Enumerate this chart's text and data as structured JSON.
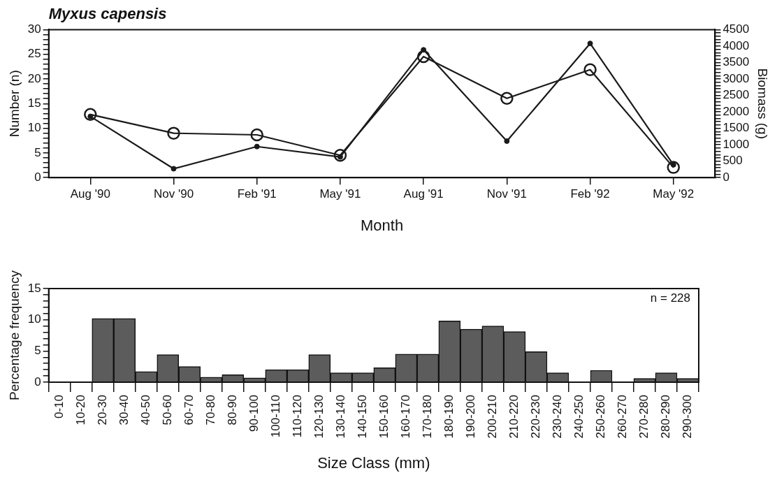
{
  "chart_data": [
    {
      "type": "line",
      "title": "Myxus capensis",
      "xlabel": "Month",
      "ylabel": "Number (n)",
      "y2label": "Biomass (g)",
      "categories": [
        "Aug '90",
        "Nov '90",
        "Feb '91",
        "May '91",
        "Aug '91",
        "Nov '91",
        "Feb '92",
        "May '92"
      ],
      "series": [
        {
          "color": "#1a1a1a",
          "values": [
            12.4,
            1.8,
            6.3,
            4.2,
            25.9,
            7.4,
            27.2,
            2.6
          ]
        },
        {
          "color": "#1a1a1a",
          "axis": "y2",
          "values": [
            1920,
            1350,
            1300,
            680,
            3680,
            2410,
            3280,
            310
          ]
        }
      ],
      "ylim": [
        0,
        30
      ],
      "yticks": [
        0,
        {
          "value": 1,
          "label": null
        },
        {
          "value": 2,
          "label": null
        },
        {
          "value": 3,
          "label": null
        },
        {
          "value": 4,
          "label": null
        },
        5,
        {
          "value": 6,
          "label": null
        },
        {
          "value": 7,
          "label": null
        },
        {
          "value": 8,
          "label": null
        },
        {
          "value": 9,
          "label": null
        },
        10,
        {
          "value": 11,
          "label": null
        },
        {
          "value": 12,
          "label": null
        },
        {
          "value": 13,
          "label": null
        },
        {
          "value": 14,
          "label": null
        },
        15,
        {
          "value": 16,
          "label": null
        },
        {
          "value": 17,
          "label": null
        },
        {
          "value": 18,
          "label": null
        },
        {
          "value": 19,
          "label": null
        },
        20,
        {
          "value": 21,
          "label": null
        },
        {
          "value": 22,
          "label": null
        },
        {
          "value": 23,
          "label": null
        },
        {
          "value": 24,
          "label": null
        },
        25,
        {
          "value": 26,
          "label": null
        },
        {
          "value": 27,
          "label": null
        },
        {
          "value": 28,
          "label": null
        },
        {
          "value": 29,
          "label": null
        },
        30
      ],
      "y2lim": [
        0,
        4500
      ],
      "y2ticks": [
        0,
        {
          "value": 100,
          "label": null
        },
        {
          "value": 200,
          "label": null
        },
        {
          "value": 300,
          "label": null
        },
        {
          "value": 400,
          "label": null
        },
        500,
        {
          "value": 600,
          "label": null
        },
        {
          "value": 700,
          "label": null
        },
        {
          "value": 800,
          "label": null
        },
        {
          "value": 900,
          "label": null
        },
        1000,
        {
          "value": 1100,
          "label": null
        },
        {
          "value": 1200,
          "label": null
        },
        {
          "value": 1300,
          "label": null
        },
        {
          "value": 1400,
          "label": null
        },
        1500,
        {
          "value": 1600,
          "label": null
        },
        {
          "value": 1700,
          "label": null
        },
        {
          "value": 1800,
          "label": null
        },
        {
          "value": 1900,
          "label": null
        },
        2000,
        {
          "value": 2100,
          "label": null
        },
        {
          "value": 2200,
          "label": null
        },
        {
          "value": 2300,
          "label": null
        },
        {
          "value": 2400,
          "label": null
        },
        2500,
        {
          "value": 2600,
          "label": null
        },
        {
          "value": 2700,
          "label": null
        },
        {
          "value": 2800,
          "label": null
        },
        {
          "value": 2900,
          "label": null
        },
        3000,
        {
          "value": 3100,
          "label": null
        },
        {
          "value": 3200,
          "label": null
        },
        {
          "value": 3300,
          "label": null
        },
        {
          "value": 3400,
          "label": null
        },
        3500,
        {
          "value": 3600,
          "label": null
        },
        {
          "value": 3700,
          "label": null
        },
        {
          "value": 3800,
          "label": null
        },
        {
          "value": 3900,
          "label": null
        },
        4000,
        {
          "value": 4100,
          "label": null
        },
        {
          "value": 4200,
          "label": null
        },
        {
          "value": 4300,
          "label": null
        },
        {
          "value": 4400,
          "label": null
        },
        4500
      ],
      "marker": "circle",
      "grid": false,
      "legend": false
    },
    {
      "type": "bar",
      "xlabel": "Size Class (mm)",
      "ylabel": "Percentage frequency",
      "annotations": [
        "n = 228"
      ],
      "categories": [
        "0-10",
        "10-20",
        "20-30",
        "30-40",
        "40-50",
        "50-60",
        "60-70",
        "70-80",
        "80-90",
        "90-100",
        "100-110",
        "110-120",
        "120-130",
        "130-140",
        "140-150",
        "150-160",
        "160-170",
        "170-180",
        "180-190",
        "190-200",
        "200-210",
        "210-220",
        "220-230",
        "230-240",
        "240-250",
        "250-260",
        "260-270",
        "270-280",
        "280-290",
        "290-300"
      ],
      "values": [
        0,
        0,
        10.2,
        10.2,
        1.7,
        4.4,
        2.5,
        0.8,
        1.2,
        0.7,
        2.0,
        2.0,
        4.4,
        1.5,
        1.5,
        2.3,
        4.5,
        4.5,
        9.8,
        8.5,
        9.0,
        8.1,
        4.9,
        1.5,
        0,
        1.9,
        0,
        0.6,
        1.5,
        0.6
      ],
      "color": "#5c5c5c",
      "ylim": [
        0,
        15
      ],
      "yticks": [
        0,
        {
          "value": 1,
          "label": null
        },
        {
          "value": 2,
          "label": null
        },
        {
          "value": 3,
          "label": null
        },
        {
          "value": 4,
          "label": null
        },
        5,
        {
          "value": 6,
          "label": null
        },
        {
          "value": 7,
          "label": null
        },
        {
          "value": 8,
          "label": null
        },
        {
          "value": 9,
          "label": null
        },
        10,
        {
          "value": 11,
          "label": null
        },
        {
          "value": 12,
          "label": null
        },
        {
          "value": 13,
          "label": null
        },
        {
          "value": 14,
          "label": null
        },
        15
      ],
      "grid": false,
      "legend": false
    }
  ]
}
